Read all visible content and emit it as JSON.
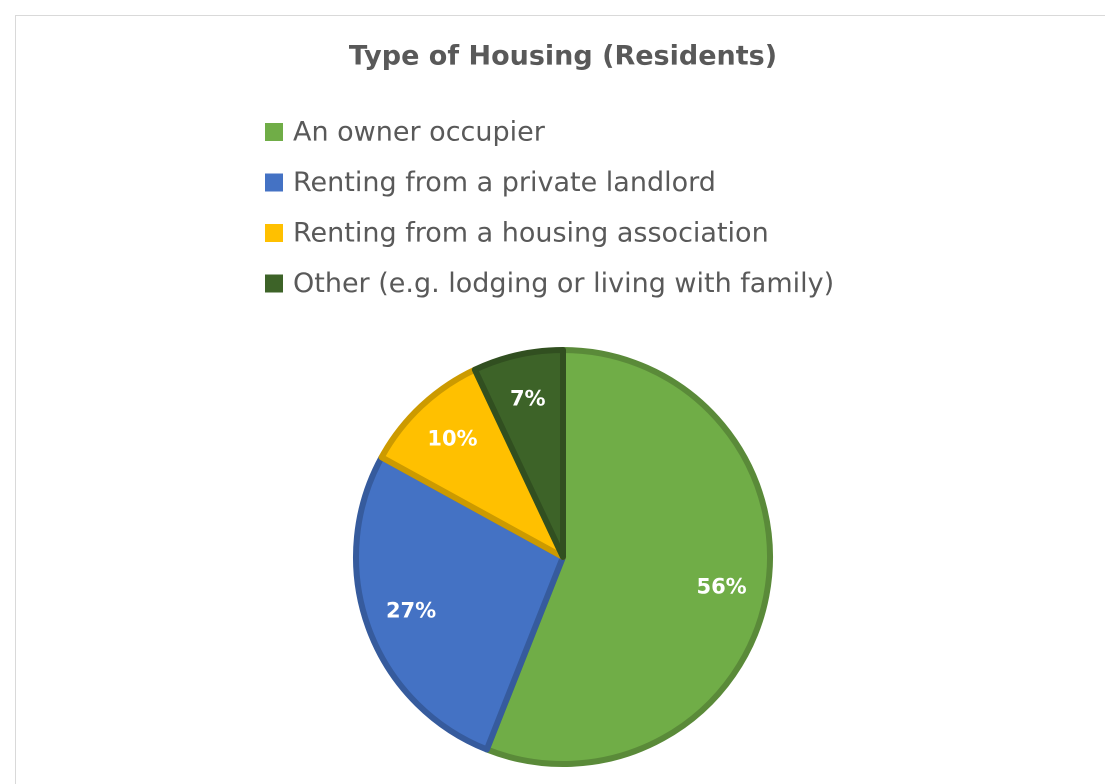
{
  "chart_data": {
    "type": "pie",
    "title": "Type of Housing (Residents)",
    "categories": [
      "An owner occupier",
      "Renting from a private landlord",
      "Renting from a housing association",
      "Other (e.g. lodging or living with family)"
    ],
    "values": [
      56,
      27,
      10,
      7
    ],
    "value_labels": [
      "56%",
      "27%",
      "10%",
      "7%"
    ],
    "colors": [
      "#70ad47",
      "#4472c4",
      "#ffc000",
      "#3d6328"
    ],
    "legend": "top"
  }
}
